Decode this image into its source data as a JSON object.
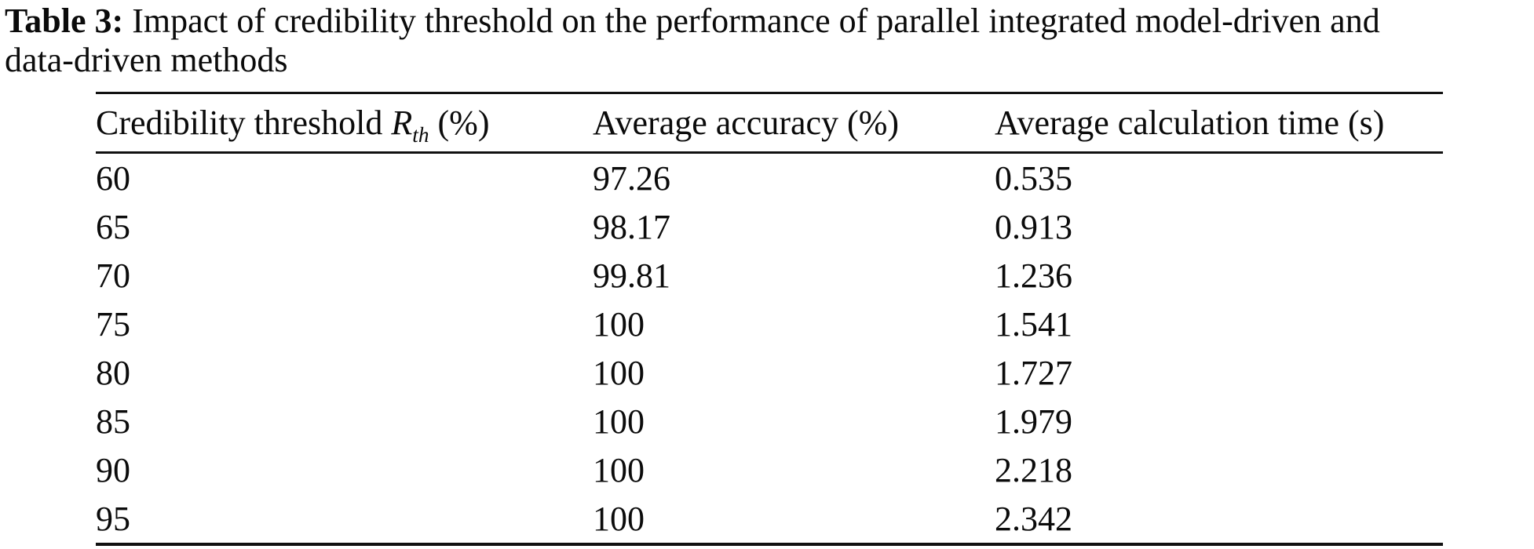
{
  "caption": {
    "label": "Table 3:",
    "line1_rest": " Impact of credibility threshold on the performance of parallel integrated model-driven and",
    "line2": "data-driven methods"
  },
  "table": {
    "header": {
      "col1": {
        "pre": "Credibility threshold ",
        "symbol": "R",
        "sub": "th",
        "post": " (%)"
      },
      "col2": "Average accuracy (%)",
      "col3": "Average calculation time (s)"
    },
    "rows": [
      {
        "threshold": "60",
        "accuracy": "97.26",
        "time": "0.535"
      },
      {
        "threshold": "65",
        "accuracy": "98.17",
        "time": "0.913"
      },
      {
        "threshold": "70",
        "accuracy": "99.81",
        "time": "1.236"
      },
      {
        "threshold": "75",
        "accuracy": "100",
        "time": "1.541"
      },
      {
        "threshold": "80",
        "accuracy": "100",
        "time": "1.727"
      },
      {
        "threshold": "85",
        "accuracy": "100",
        "time": "1.979"
      },
      {
        "threshold": "90",
        "accuracy": "100",
        "time": "2.218"
      },
      {
        "threshold": "95",
        "accuracy": "100",
        "time": "2.342"
      }
    ]
  },
  "chart_data": {
    "type": "table",
    "title": "Impact of credibility threshold on the performance of parallel integrated model-driven and data-driven methods",
    "columns": [
      "Credibility threshold Rth (%)",
      "Average accuracy (%)",
      "Average calculation time (s)"
    ],
    "rows": [
      [
        60,
        97.26,
        0.535
      ],
      [
        65,
        98.17,
        0.913
      ],
      [
        70,
        99.81,
        1.236
      ],
      [
        75,
        100,
        1.541
      ],
      [
        80,
        100,
        1.727
      ],
      [
        85,
        100,
        1.979
      ],
      [
        90,
        100,
        2.218
      ],
      [
        95,
        100,
        2.342
      ]
    ]
  }
}
